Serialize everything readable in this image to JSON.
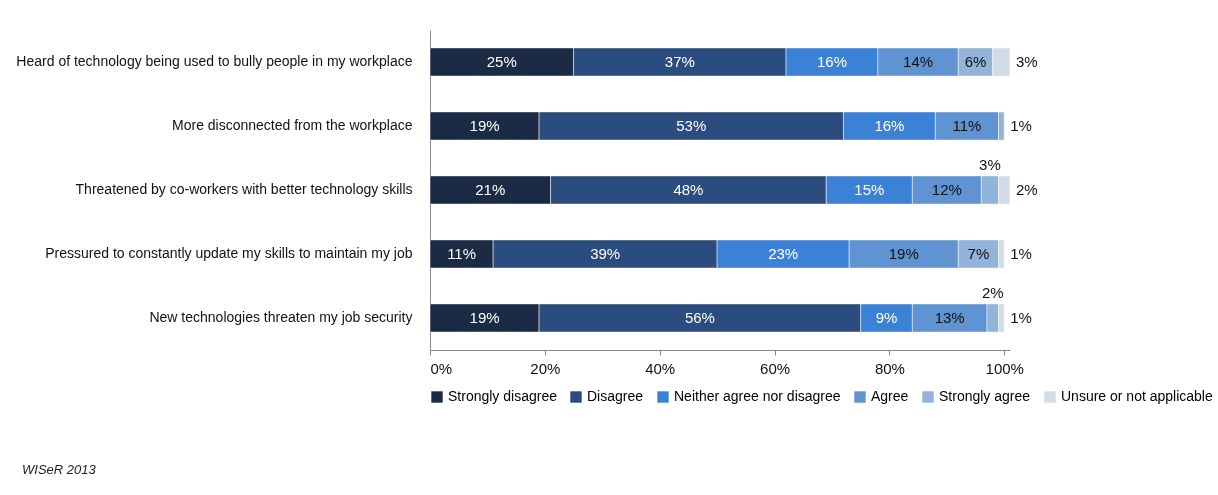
{
  "chart_data": {
    "type": "bar",
    "orientation": "horizontal",
    "stacked": true,
    "categories": [
      "Heard of technology being used to bully people in my workplace",
      "More disconnected from the workplace",
      "Threatened by co-workers with better technology skills",
      "Pressured to constantly update my skills to maintain my job",
      "New technologies threaten my job security"
    ],
    "series": [
      {
        "name": "Strongly disagree",
        "color": "#1c2b45",
        "values": [
          25,
          19,
          21,
          11,
          19
        ],
        "value_labels": [
          "25%",
          "19%",
          "21%",
          "11%",
          "19%"
        ]
      },
      {
        "name": "Disagree",
        "color": "#2b4c7e",
        "values": [
          37,
          53,
          48,
          39,
          56
        ],
        "value_labels": [
          "37%",
          "53%",
          "48%",
          "39%",
          "56%"
        ]
      },
      {
        "name": "Neither agree nor disagree",
        "color": "#3b82d6",
        "values": [
          16,
          16,
          15,
          23,
          9
        ],
        "value_labels": [
          "16%",
          "16%",
          "15%",
          "23%",
          "9%"
        ]
      },
      {
        "name": "Agree",
        "color": "#5f93d2",
        "values": [
          14,
          11,
          12,
          19,
          13
        ],
        "value_labels": [
          "14%",
          "11%",
          "12%",
          "19%",
          "13%"
        ]
      },
      {
        "name": "Strongly agree",
        "color": "#92b3da",
        "values": [
          6,
          1,
          3,
          7,
          2
        ],
        "value_labels": [
          "6%",
          "1%",
          "3%",
          "7%",
          "2%"
        ]
      },
      {
        "name": "Unsure or not applicable",
        "color": "#d3dbe6",
        "values": [
          3,
          null,
          2,
          1,
          1
        ],
        "value_labels": [
          "3%",
          null,
          "2%",
          "1%",
          "1%"
        ]
      }
    ],
    "xlim": [
      0,
      101
    ],
    "xticks": [
      {
        "value": 0,
        "label": "0%"
      },
      {
        "value": 20,
        "label": "20%"
      },
      {
        "value": 40,
        "label": "40%"
      },
      {
        "value": 60,
        "label": "60%"
      },
      {
        "value": 80,
        "label": "80%"
      },
      {
        "value": 100,
        "label": "100%"
      }
    ],
    "grid": false,
    "legend": "bottom",
    "annotations": [
      "WISeR 2013"
    ]
  }
}
